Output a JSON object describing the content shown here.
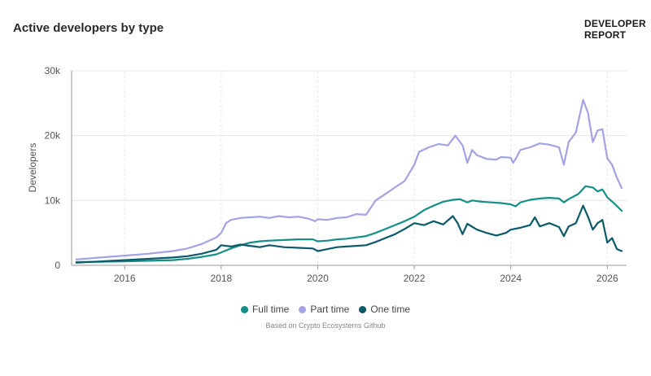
{
  "header": {
    "title": "Active developers by type",
    "brand_line1": "DEVELOPER",
    "brand_line2": "REPORT"
  },
  "footer": {
    "source": "Based on Crypto Ecosystems Github"
  },
  "chart_data": {
    "type": "line",
    "title": "Active developers by type",
    "xlabel": "",
    "ylabel": "Developers",
    "xlim": [
      2014.9,
      2026.4
    ],
    "ylim": [
      0,
      30000
    ],
    "x_ticks": [
      2016,
      2018,
      2020,
      2022,
      2024,
      2026
    ],
    "y_ticks": [
      {
        "value": 0,
        "label": "0"
      },
      {
        "value": 10000,
        "label": "10k"
      },
      {
        "value": 20000,
        "label": "20k"
      },
      {
        "value": 30000,
        "label": "30k"
      }
    ],
    "grid": true,
    "legend": "bottom-center",
    "series": [
      {
        "name": "Full time",
        "color": "#149086",
        "points": [
          [
            2015.0,
            500
          ],
          [
            2015.5,
            550
          ],
          [
            2016.0,
            600
          ],
          [
            2016.5,
            700
          ],
          [
            2017.0,
            800
          ],
          [
            2017.3,
            1000
          ],
          [
            2017.6,
            1300
          ],
          [
            2017.9,
            1700
          ],
          [
            2018.0,
            2000
          ],
          [
            2018.2,
            2600
          ],
          [
            2018.4,
            3100
          ],
          [
            2018.6,
            3500
          ],
          [
            2018.8,
            3700
          ],
          [
            2019.0,
            3800
          ],
          [
            2019.3,
            3900
          ],
          [
            2019.6,
            4000
          ],
          [
            2019.9,
            4000
          ],
          [
            2020.0,
            3700
          ],
          [
            2020.2,
            3800
          ],
          [
            2020.4,
            4000
          ],
          [
            2020.6,
            4100
          ],
          [
            2020.8,
            4300
          ],
          [
            2021.0,
            4500
          ],
          [
            2021.2,
            5000
          ],
          [
            2021.4,
            5600
          ],
          [
            2021.6,
            6200
          ],
          [
            2021.8,
            6800
          ],
          [
            2022.0,
            7500
          ],
          [
            2022.2,
            8500
          ],
          [
            2022.4,
            9200
          ],
          [
            2022.6,
            9800
          ],
          [
            2022.8,
            10100
          ],
          [
            2022.95,
            10200
          ],
          [
            2023.1,
            9700
          ],
          [
            2023.2,
            10000
          ],
          [
            2023.4,
            9800
          ],
          [
            2023.6,
            9700
          ],
          [
            2023.8,
            9600
          ],
          [
            2024.0,
            9400
          ],
          [
            2024.1,
            9100
          ],
          [
            2024.2,
            9700
          ],
          [
            2024.4,
            10100
          ],
          [
            2024.6,
            10300
          ],
          [
            2024.8,
            10400
          ],
          [
            2025.0,
            10300
          ],
          [
            2025.1,
            9700
          ],
          [
            2025.2,
            10200
          ],
          [
            2025.4,
            11000
          ],
          [
            2025.55,
            12200
          ],
          [
            2025.7,
            12000
          ],
          [
            2025.8,
            11400
          ],
          [
            2025.9,
            11700
          ],
          [
            2026.0,
            10500
          ],
          [
            2026.15,
            9500
          ],
          [
            2026.3,
            8400
          ]
        ]
      },
      {
        "name": "Part time",
        "color": "#a3a3e4",
        "points": [
          [
            2015.0,
            900
          ],
          [
            2015.5,
            1200
          ],
          [
            2016.0,
            1500
          ],
          [
            2016.5,
            1800
          ],
          [
            2017.0,
            2200
          ],
          [
            2017.3,
            2600
          ],
          [
            2017.6,
            3300
          ],
          [
            2017.9,
            4300
          ],
          [
            2018.0,
            5000
          ],
          [
            2018.1,
            6500
          ],
          [
            2018.2,
            7000
          ],
          [
            2018.4,
            7300
          ],
          [
            2018.6,
            7400
          ],
          [
            2018.8,
            7500
          ],
          [
            2019.0,
            7300
          ],
          [
            2019.2,
            7600
          ],
          [
            2019.4,
            7400
          ],
          [
            2019.6,
            7500
          ],
          [
            2019.8,
            7200
          ],
          [
            2019.95,
            6800
          ],
          [
            2020.0,
            7100
          ],
          [
            2020.2,
            7000
          ],
          [
            2020.4,
            7300
          ],
          [
            2020.6,
            7400
          ],
          [
            2020.8,
            7900
          ],
          [
            2021.0,
            7800
          ],
          [
            2021.2,
            10000
          ],
          [
            2021.4,
            11000
          ],
          [
            2021.6,
            12000
          ],
          [
            2021.8,
            13000
          ],
          [
            2022.0,
            15500
          ],
          [
            2022.1,
            17500
          ],
          [
            2022.3,
            18200
          ],
          [
            2022.5,
            18700
          ],
          [
            2022.7,
            18500
          ],
          [
            2022.85,
            20000
          ],
          [
            2023.0,
            18500
          ],
          [
            2023.1,
            15800
          ],
          [
            2023.2,
            17800
          ],
          [
            2023.3,
            17000
          ],
          [
            2023.5,
            16400
          ],
          [
            2023.7,
            16300
          ],
          [
            2023.8,
            16700
          ],
          [
            2024.0,
            16600
          ],
          [
            2024.05,
            15800
          ],
          [
            2024.1,
            16400
          ],
          [
            2024.2,
            17800
          ],
          [
            2024.4,
            18200
          ],
          [
            2024.6,
            18800
          ],
          [
            2024.8,
            18600
          ],
          [
            2025.0,
            18200
          ],
          [
            2025.1,
            15500
          ],
          [
            2025.2,
            19000
          ],
          [
            2025.35,
            20500
          ],
          [
            2025.5,
            25500
          ],
          [
            2025.6,
            23500
          ],
          [
            2025.7,
            19000
          ],
          [
            2025.8,
            20800
          ],
          [
            2025.9,
            21000
          ],
          [
            2026.0,
            16500
          ],
          [
            2026.1,
            15500
          ],
          [
            2026.2,
            13500
          ],
          [
            2026.3,
            11900
          ]
        ]
      },
      {
        "name": "One time",
        "color": "#0b5a6a",
        "points": [
          [
            2015.0,
            400
          ],
          [
            2015.5,
            600
          ],
          [
            2016.0,
            800
          ],
          [
            2016.5,
            1000
          ],
          [
            2017.0,
            1200
          ],
          [
            2017.3,
            1400
          ],
          [
            2017.6,
            1800
          ],
          [
            2017.9,
            2400
          ],
          [
            2018.0,
            3100
          ],
          [
            2018.2,
            2900
          ],
          [
            2018.4,
            3200
          ],
          [
            2018.6,
            3000
          ],
          [
            2018.8,
            2800
          ],
          [
            2019.0,
            3100
          ],
          [
            2019.3,
            2800
          ],
          [
            2019.6,
            2700
          ],
          [
            2019.9,
            2600
          ],
          [
            2020.0,
            2200
          ],
          [
            2020.2,
            2500
          ],
          [
            2020.4,
            2800
          ],
          [
            2020.6,
            2900
          ],
          [
            2020.8,
            3000
          ],
          [
            2021.0,
            3100
          ],
          [
            2021.2,
            3600
          ],
          [
            2021.4,
            4200
          ],
          [
            2021.6,
            4800
          ],
          [
            2021.8,
            5600
          ],
          [
            2022.0,
            6500
          ],
          [
            2022.2,
            6200
          ],
          [
            2022.4,
            6800
          ],
          [
            2022.6,
            6300
          ],
          [
            2022.8,
            7600
          ],
          [
            2022.9,
            6500
          ],
          [
            2023.0,
            4800
          ],
          [
            2023.1,
            6400
          ],
          [
            2023.3,
            5500
          ],
          [
            2023.5,
            5000
          ],
          [
            2023.7,
            4600
          ],
          [
            2023.9,
            5000
          ],
          [
            2024.0,
            5500
          ],
          [
            2024.2,
            5800
          ],
          [
            2024.4,
            6200
          ],
          [
            2024.5,
            7400
          ],
          [
            2024.6,
            6000
          ],
          [
            2024.8,
            6500
          ],
          [
            2025.0,
            5900
          ],
          [
            2025.1,
            4500
          ],
          [
            2025.2,
            6000
          ],
          [
            2025.35,
            6500
          ],
          [
            2025.5,
            9200
          ],
          [
            2025.6,
            7500
          ],
          [
            2025.7,
            5500
          ],
          [
            2025.8,
            6500
          ],
          [
            2025.9,
            7000
          ],
          [
            2026.0,
            3500
          ],
          [
            2026.1,
            4200
          ],
          [
            2026.2,
            2500
          ],
          [
            2026.3,
            2200
          ]
        ]
      }
    ]
  }
}
